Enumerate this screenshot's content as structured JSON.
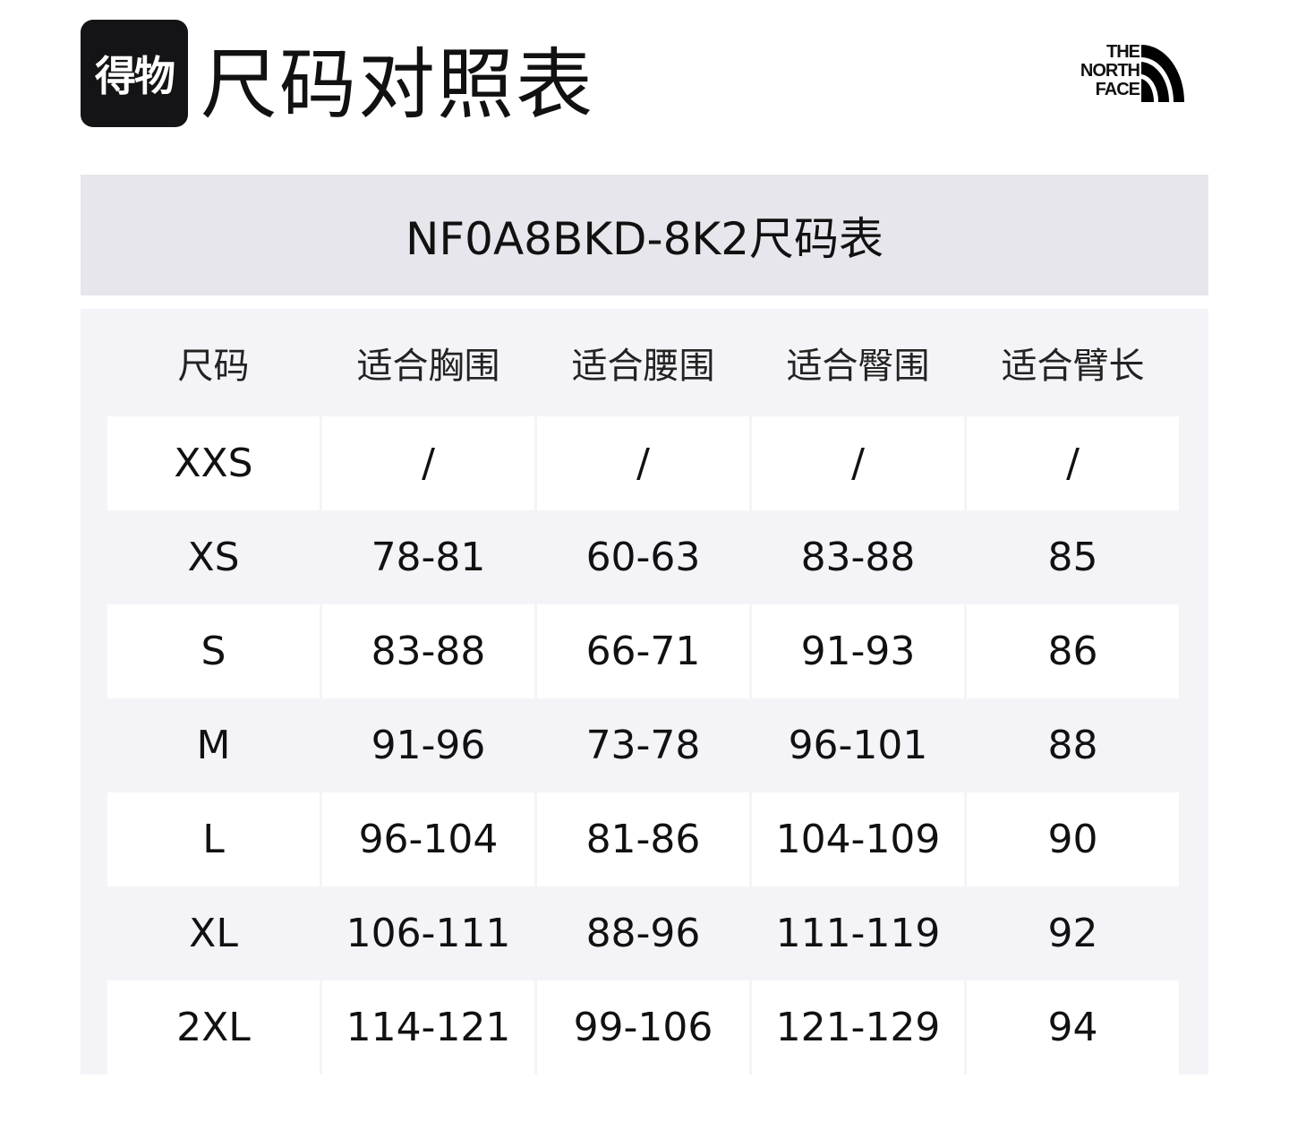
{
  "header": {
    "badge": "得物",
    "title": "尺码对照表",
    "brand_logo": [
      "THE",
      "NORTH",
      "FACE"
    ]
  },
  "table_title": "NF0A8BKD-8K2尺码表",
  "columns": [
    "尺码",
    "适合胸围",
    "适合腰围",
    "适合臀围",
    "适合臂长"
  ],
  "rows": [
    [
      "XXS",
      "/",
      "/",
      "/",
      "/"
    ],
    [
      "XS",
      "78-81",
      "60-63",
      "83-88",
      "85"
    ],
    [
      "S",
      "83-88",
      "66-71",
      "91-93",
      "86"
    ],
    [
      "M",
      "91-96",
      "73-78",
      "96-101",
      "88"
    ],
    [
      "L",
      "96-104",
      "81-86",
      "104-109",
      "90"
    ],
    [
      "XL",
      "106-111",
      "88-96",
      "111-119",
      "92"
    ],
    [
      "2XL",
      "114-121",
      "99-106",
      "121-129",
      "94"
    ]
  ],
  "colors": {
    "title_band": "#e6e6ec",
    "table_bg": "#f4f4f8",
    "badge_bg": "#141417"
  }
}
